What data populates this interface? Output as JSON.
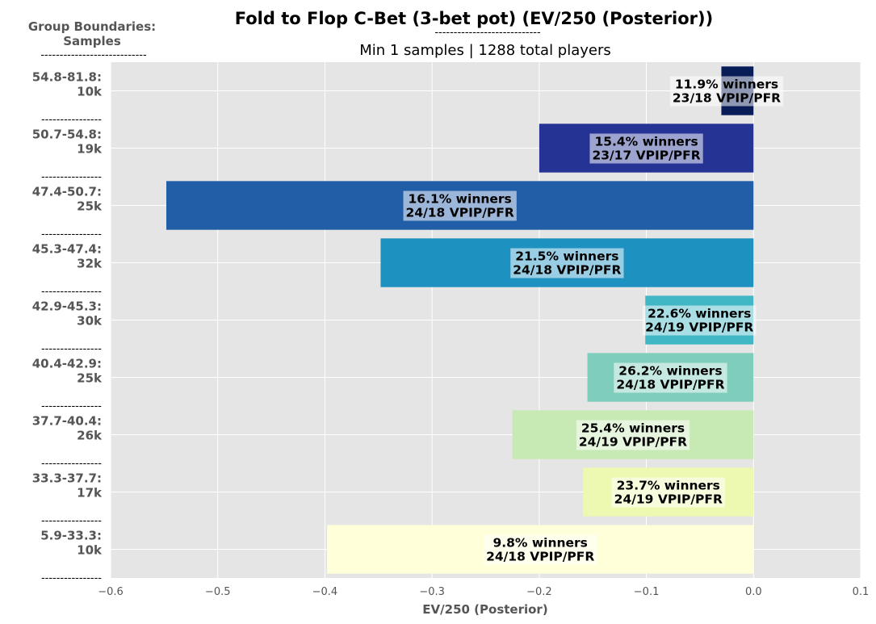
{
  "chart_data": {
    "type": "bar",
    "orientation": "horizontal",
    "title": "Fold to Flop C-Bet (3-bet pot) (EV/250 (Posterior))",
    "title_underline": "----------------------------",
    "subtitle": "Min 1 samples | 1288 total players",
    "group_header_line1": "Group Boundaries:",
    "group_header_line2": "Samples",
    "group_header_rule": "----------------------------",
    "separator": "----------------",
    "xlabel": "EV/250 (Posterior)",
    "xlim": [
      -0.6,
      0.1
    ],
    "xticks": [
      -0.6,
      -0.5,
      -0.4,
      -0.3,
      -0.2,
      -0.1,
      0.0,
      0.1
    ],
    "xtick_labels": [
      "−0.6",
      "−0.5",
      "−0.4",
      "−0.3",
      "−0.2",
      "−0.1",
      "0.0",
      "0.1"
    ],
    "grid": true,
    "categories": [
      {
        "range": "54.8-81.8:",
        "samples": "10k",
        "value": -0.03,
        "winners": "11.9% winners",
        "vpip": "23/18 VPIP/PFR",
        "color": "#081d58"
      },
      {
        "range": "50.7-54.8:",
        "samples": "19k",
        "value": -0.2,
        "winners": "15.4% winners",
        "vpip": "23/17 VPIP/PFR",
        "color": "#253494"
      },
      {
        "range": "47.4-50.7:",
        "samples": "25k",
        "value": -0.548,
        "winners": "16.1% winners",
        "vpip": "24/18 VPIP/PFR",
        "color": "#225ea8"
      },
      {
        "range": "45.3-47.4:",
        "samples": "32k",
        "value": -0.348,
        "winners": "21.5% winners",
        "vpip": "24/18 VPIP/PFR",
        "color": "#1d91c0"
      },
      {
        "range": "42.9-45.3:",
        "samples": "30k",
        "value": -0.101,
        "winners": "22.6% winners",
        "vpip": "24/19 VPIP/PFR",
        "color": "#41b6c4"
      },
      {
        "range": "40.4-42.9:",
        "samples": "25k",
        "value": -0.155,
        "winners": "26.2% winners",
        "vpip": "24/18 VPIP/PFR",
        "color": "#7fcdbb"
      },
      {
        "range": "37.7-40.4:",
        "samples": "26k",
        "value": -0.225,
        "winners": "25.4% winners",
        "vpip": "24/19 VPIP/PFR",
        "color": "#c7e9b4"
      },
      {
        "range": "33.3-37.7:",
        "samples": "17k",
        "value": -0.159,
        "winners": "23.7% winners",
        "vpip": "24/19 VPIP/PFR",
        "color": "#edf8b1"
      },
      {
        "range": "5.9-33.3:",
        "samples": "10k",
        "value": -0.398,
        "winners": "9.8% winners",
        "vpip": "24/18 VPIP/PFR",
        "color": "#ffffd9"
      }
    ]
  }
}
